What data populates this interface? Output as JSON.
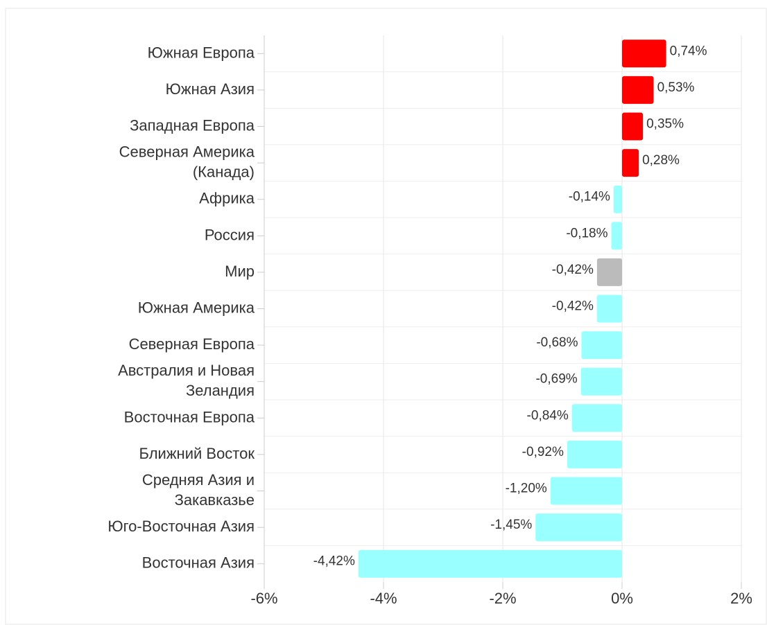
{
  "chart_data": {
    "type": "bar",
    "orientation": "horizontal",
    "categories": [
      "Южная Европа",
      "Южная Азия",
      "Западная Европа",
      "Северная Америка (Канада)",
      "Африка",
      "Россия",
      "Мир",
      "Южная Америка",
      "Северная Европа",
      "Австралия и Новая Зеландия",
      "Восточная Европа",
      "Ближний Восток",
      "Средняя Азия и Закавказье",
      "Юго-Восточная Азия",
      "Восточная Азия"
    ],
    "values": [
      0.74,
      0.53,
      0.35,
      0.28,
      -0.14,
      -0.18,
      -0.42,
      -0.42,
      -0.68,
      -0.69,
      -0.84,
      -0.92,
      -1.2,
      -1.45,
      -4.42
    ],
    "value_labels": [
      "0,74%",
      "0,53%",
      "0,35%",
      "0,28%",
      "-0,14%",
      "-0,18%",
      "-0,42%",
      "-0,42%",
      "-0,68%",
      "-0,69%",
      "-0,84%",
      "-0,92%",
      "-1,20%",
      "-1,45%",
      "-4,42%"
    ],
    "colors": [
      "#ff0000",
      "#ff0000",
      "#ff0000",
      "#ff0000",
      "#99ffff",
      "#99ffff",
      "#bbbbbb",
      "#99ffff",
      "#99ffff",
      "#99ffff",
      "#99ffff",
      "#99ffff",
      "#99ffff",
      "#99ffff",
      "#99ffff"
    ],
    "xlim": [
      -6,
      2
    ],
    "xticks": [
      {
        "value": -6,
        "label": "-6%"
      },
      {
        "value": -4,
        "label": "-4%"
      },
      {
        "value": -2,
        "label": "-2%"
      },
      {
        "value": 0,
        "label": "0%"
      },
      {
        "value": 2,
        "label": "2%"
      }
    ],
    "grid": true
  }
}
